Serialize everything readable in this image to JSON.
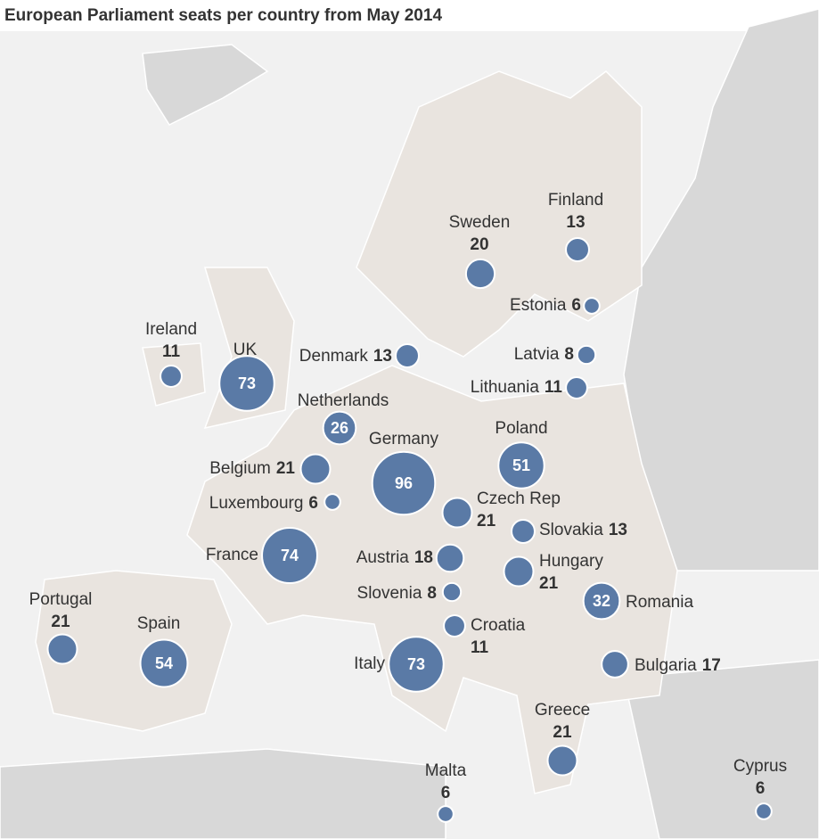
{
  "title": "European Parliament seats per country from May 2014",
  "countries": [
    {
      "name": "Ireland",
      "seats": 11
    },
    {
      "name": "UK",
      "seats": 73
    },
    {
      "name": "Denmark",
      "seats": 13
    },
    {
      "name": "Netherlands",
      "seats": 26
    },
    {
      "name": "Germany",
      "seats": 96
    },
    {
      "name": "Belgium",
      "seats": 21
    },
    {
      "name": "Luxembourg",
      "seats": 6
    },
    {
      "name": "France",
      "seats": 74
    },
    {
      "name": "Portugal",
      "seats": 21
    },
    {
      "name": "Spain",
      "seats": 54
    },
    {
      "name": "Italy",
      "seats": 73
    },
    {
      "name": "Malta",
      "seats": 6
    },
    {
      "name": "Sweden",
      "seats": 20
    },
    {
      "name": "Finland",
      "seats": 13
    },
    {
      "name": "Estonia",
      "seats": 6
    },
    {
      "name": "Latvia",
      "seats": 8
    },
    {
      "name": "Lithuania",
      "seats": 11
    },
    {
      "name": "Poland",
      "seats": 51
    },
    {
      "name": "Czech Rep",
      "seats": 21
    },
    {
      "name": "Slovakia",
      "seats": 13
    },
    {
      "name": "Austria",
      "seats": 18
    },
    {
      "name": "Hungary",
      "seats": 21
    },
    {
      "name": "Slovenia",
      "seats": 8
    },
    {
      "name": "Croatia",
      "seats": 11
    },
    {
      "name": "Romania",
      "seats": 32
    },
    {
      "name": "Bulgaria",
      "seats": 17
    },
    {
      "name": "Greece",
      "seats": 21
    },
    {
      "name": "Cyprus",
      "seats": 6
    }
  ]
}
